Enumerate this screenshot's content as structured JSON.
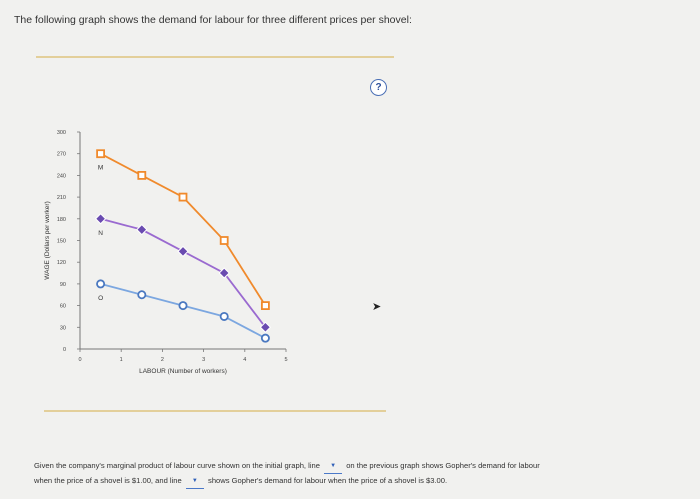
{
  "question": {
    "intro": "The following graph shows the demand for labour for three different prices per shovel:",
    "help_label": "?"
  },
  "chart_data": {
    "type": "line",
    "xlabel": "LABOUR (Number of workers)",
    "ylabel": "WAGE (Dollars per worker)",
    "x_ticks": [
      0,
      1,
      2,
      3,
      4,
      5
    ],
    "y_ticks": [
      0,
      30,
      60,
      90,
      120,
      150,
      180,
      210,
      240,
      270,
      300
    ],
    "xlim": [
      0,
      5
    ],
    "ylim": [
      0,
      300
    ],
    "series": [
      {
        "name": "M",
        "color": "#f08a2c",
        "marker": "square",
        "x": [
          0.5,
          1.5,
          2.5,
          3.5,
          4.5
        ],
        "y": [
          270,
          240,
          210,
          150,
          60
        ]
      },
      {
        "name": "N",
        "color": "#9a6ad0",
        "marker": "diamond",
        "x": [
          0.5,
          1.5,
          2.5,
          3.5,
          4.5
        ],
        "y": [
          180,
          165,
          135,
          105,
          30
        ]
      },
      {
        "name": "O",
        "color": "#7ca7e0",
        "marker": "circle",
        "x": [
          0.5,
          1.5,
          2.5,
          3.5,
          4.5
        ],
        "y": [
          90,
          75,
          60,
          45,
          15
        ]
      }
    ]
  },
  "footer": {
    "line1_a": "Given the company's marginal product of labour curve shown on the initial graph, line",
    "line1_b": "on the previous graph shows Gopher's demand for labour",
    "line2_a": "when the price of a shovel is $1.00, and line",
    "line2_b": "shows Gopher's demand for labour when the price of a shovel is $3.00.",
    "dropdown_glyph": "▼"
  }
}
